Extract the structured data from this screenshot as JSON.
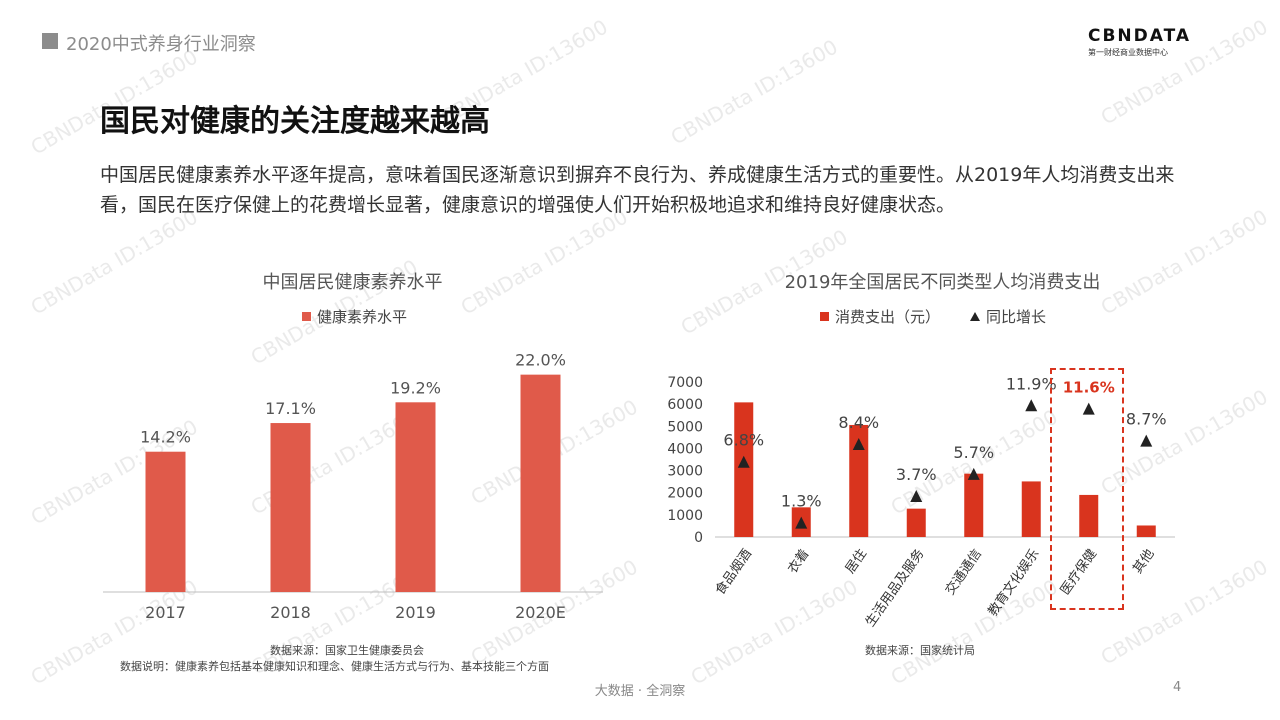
{
  "header": {
    "section_title": "2020中式养身行业洞察",
    "logo_text": "CBNDATA",
    "logo_sub": "第一财经商业数据中心"
  },
  "page_title": "国民对健康的关注度越来越高",
  "intro_text": "中国居民健康素养水平逐年提高，意味着国民逐渐意识到摒弃不良行为、养成健康生活方式的重要性。从2019年人均消费支出来看，国民在医疗保健上的花费增长显著，健康意识的增强使人们开始积极地追求和维持良好健康状态。",
  "watermark_text": "CBNData ID:13600",
  "colors": {
    "left_bar": "#e05a4a",
    "right_bar": "#d9341e",
    "highlight": "#d9341e",
    "marker": "#222222"
  },
  "chart_data": [
    {
      "type": "bar",
      "title": "中国居民健康素养水平",
      "legend": [
        "健康素养水平"
      ],
      "legend_position": "top",
      "categories": [
        "2017",
        "2018",
        "2019",
        "2020E"
      ],
      "values": [
        14.2,
        17.1,
        19.2,
        22.0
      ],
      "data_labels": [
        "14.2%",
        "17.1%",
        "19.2%",
        "22.0%"
      ],
      "ylim": [
        0,
        25
      ],
      "grid": false
    },
    {
      "type": "bar",
      "title": "2019年全国居民不同类型人均消费支出",
      "legend": [
        "消费支出（元）",
        "同比增长"
      ],
      "legend_position": "top",
      "categories": [
        "食品烟酒",
        "衣着",
        "居住",
        "生活用品及服务",
        "交通通信",
        "教育文化娱乐",
        "医疗保健",
        "其他"
      ],
      "series": [
        {
          "name": "消费支出（元）",
          "type": "bar",
          "values": [
            6080,
            1340,
            5060,
            1280,
            2860,
            2510,
            1900,
            520
          ]
        },
        {
          "name": "同比增长",
          "type": "scatter",
          "values": [
            6.8,
            1.3,
            8.4,
            3.7,
            5.7,
            11.9,
            11.6,
            8.7
          ]
        }
      ],
      "growth_labels": [
        "6.8%",
        "1.3%",
        "8.4%",
        "3.7%",
        "5.7%",
        "11.9%",
        "11.6%",
        "8.7%"
      ],
      "highlight_index": 6,
      "yticks": [
        "0",
        "1000",
        "2000",
        "3000",
        "4000",
        "5000",
        "6000",
        "7000"
      ],
      "ylim": [
        0,
        7000
      ],
      "secondary_ylim": [
        0,
        14
      ],
      "grid": false
    }
  ],
  "sources": {
    "left_source": "数据来源：国家卫生健康委员会",
    "left_note": "数据说明：健康素养包括基本健康知识和理念、健康生活方式与行为、基本技能三个方面",
    "right_source": "数据来源：国家统计局"
  },
  "footer": {
    "center": "大数据 · 全洞察",
    "page_number": "4"
  }
}
